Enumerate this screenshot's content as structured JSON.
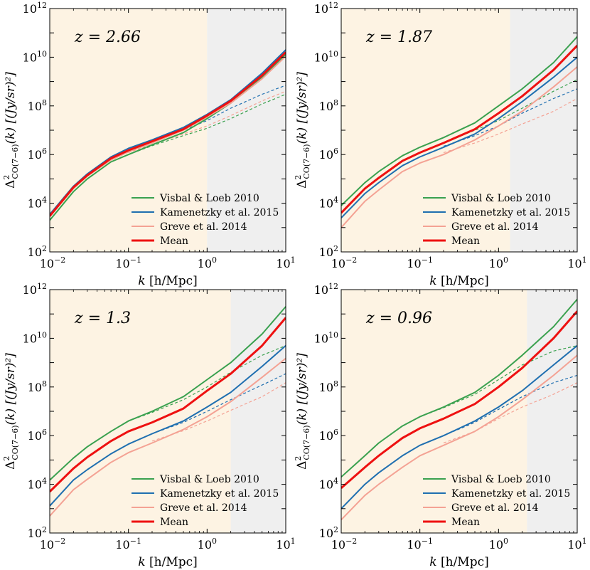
{
  "figure": {
    "title": "",
    "colors": {
      "visbal": "#3aa14f",
      "kamenetzky": "#1f6fb0",
      "greve": "#f4a294",
      "mean": "#ee1111",
      "shade_left": "#fdf3e3",
      "shade_right": "#efefef"
    }
  },
  "chart_data": [
    {
      "type": "line",
      "panel": "top-left",
      "annotation": "z = 2.66",
      "xlabel": "k [h/Mpc]",
      "ylabel": "Δ²_CO(7−6)(k) [(Jy/sr)²]",
      "xscale": "log",
      "yscale": "log",
      "xlim": [
        0.01,
        10
      ],
      "ylim": [
        100,
        1000000000000
      ],
      "xtick_labels": [
        "10^-2",
        "10^-1",
        "10^0",
        "10^1"
      ],
      "ytick_labels": [
        "10^2",
        "10^4",
        "10^6",
        "10^8",
        "10^10",
        "10^12"
      ],
      "shaded_regions": [
        {
          "name": "low-k",
          "x": [
            0.01,
            1.0
          ]
        },
        {
          "name": "high-k",
          "x": [
            1.0,
            10
          ]
        }
      ],
      "x": [
        0.01,
        0.02,
        0.03,
        0.06,
        0.1,
        0.2,
        0.5,
        1,
        2,
        5,
        10
      ],
      "series": [
        {
          "name": "Visbal & Loeb 2010",
          "style": "solid",
          "values": [
            2000,
            30000,
            100000,
            500000,
            1000000,
            2500000,
            8000000,
            30000000,
            130000000,
            1500000000,
            13000000000
          ]
        },
        {
          "name": "Kamenetzky et al.  2015",
          "style": "solid",
          "values": [
            3500,
            50000,
            160000,
            800000,
            1800000,
            4000000,
            13000000,
            45000000,
            180000000,
            2200000000,
            20000000000
          ]
        },
        {
          "name": "Greve et al.  2014",
          "style": "solid",
          "values": [
            2800,
            40000,
            130000,
            600000,
            1300000,
            3000000,
            10000000,
            35000000,
            130000000,
            1300000000,
            11000000000
          ]
        },
        {
          "name": "Mean",
          "style": "solid",
          "values": [
            3000,
            45000,
            140000,
            700000,
            1500000,
            3500000,
            11000000,
            40000000,
            160000000,
            1800000000,
            16000000000
          ]
        },
        {
          "name": "Visbal & Loeb 2010 (1-halo)",
          "style": "dashed",
          "values": [
            null,
            null,
            null,
            null,
            1000000,
            2300000,
            6000000,
            12000000,
            30000000,
            120000000,
            300000000
          ]
        },
        {
          "name": "Kamenetzky et al.  2015 (1-halo)",
          "style": "dashed",
          "values": [
            null,
            null,
            null,
            null,
            1800000,
            3800000,
            10000000,
            25000000,
            80000000,
            300000000,
            700000000
          ]
        },
        {
          "name": "Greve et al.  2014 (1-halo)",
          "style": "dashed",
          "values": [
            null,
            null,
            null,
            null,
            1200000,
            2600000,
            7000000,
            15000000,
            40000000,
            160000000,
            400000000
          ]
        }
      ],
      "legend": [
        "Visbal & Loeb 2010",
        "Kamenetzky et al.  2015",
        "Greve et al.  2014",
        "Mean"
      ]
    },
    {
      "type": "line",
      "panel": "top-right",
      "annotation": "z = 1.87",
      "xlabel": "k [h/Mpc]",
      "ylabel": "Δ²_CO(7−6)(k) [(Jy/sr)²]",
      "xscale": "log",
      "yscale": "log",
      "xlim": [
        0.01,
        10
      ],
      "ylim": [
        100,
        1000000000000
      ],
      "xtick_labels": [
        "10^-2",
        "10^-1",
        "10^0",
        "10^1"
      ],
      "ytick_labels": [
        "10^2",
        "10^4",
        "10^6",
        "10^8",
        "10^10",
        "10^12"
      ],
      "shaded_regions": [
        {
          "name": "low-k",
          "x": [
            0.01,
            1.4
          ]
        },
        {
          "name": "high-k",
          "x": [
            1.4,
            10
          ]
        }
      ],
      "x": [
        0.01,
        0.02,
        0.03,
        0.06,
        0.1,
        0.2,
        0.5,
        1,
        2,
        5,
        10
      ],
      "series": [
        {
          "name": "Visbal & Loeb 2010",
          "style": "solid",
          "values": [
            8000,
            70000,
            200000,
            900000,
            2000000,
            5000000,
            20000000,
            100000000,
            500000000,
            6000000000,
            70000000000
          ]
        },
        {
          "name": "Kamenetzky et al.  2015",
          "style": "solid",
          "values": [
            2500,
            25000,
            70000,
            350000,
            800000,
            2000000,
            7000000,
            30000000,
            150000000,
            1500000000,
            10000000000
          ]
        },
        {
          "name": "Greve et al.  2014",
          "style": "solid",
          "values": [
            1000,
            12000,
            35000,
            200000,
            450000,
            1000000,
            4000000,
            15000000,
            60000000,
            600000000,
            4000000000
          ]
        },
        {
          "name": "Mean",
          "style": "solid",
          "values": [
            4000,
            40000,
            110000,
            550000,
            1200000,
            3000000,
            11000000,
            50000000,
            250000000,
            3000000000,
            30000000000
          ]
        },
        {
          "name": "Visbal & Loeb 2010 (1-halo)",
          "style": "dashed",
          "values": [
            null,
            null,
            null,
            null,
            null,
            3000000,
            10000000,
            25000000,
            80000000,
            400000000,
            1200000000
          ]
        },
        {
          "name": "Kamenetzky et al.  2015 (1-halo)",
          "style": "dashed",
          "values": [
            null,
            null,
            null,
            null,
            null,
            2200000,
            6000000,
            15000000,
            50000000,
            200000000,
            500000000
          ]
        },
        {
          "name": "Greve et al.  2014 (1-halo)",
          "style": "dashed",
          "values": [
            null,
            null,
            null,
            null,
            null,
            1200000,
            3000000,
            7000000,
            18000000,
            60000000,
            200000000
          ]
        }
      ],
      "legend": [
        "Visbal & Loeb 2010",
        "Kamenetzky et al.  2015",
        "Greve et al.  2014",
        "Mean"
      ]
    },
    {
      "type": "line",
      "panel": "bottom-left",
      "annotation": "z = 1.3",
      "xlabel": "k [h/Mpc]",
      "ylabel": "Δ²_CO(7−6)(k) [(Jy/sr)²]",
      "xscale": "log",
      "yscale": "log",
      "xlim": [
        0.01,
        10
      ],
      "ylim": [
        100,
        1000000000000
      ],
      "xtick_labels": [
        "10^-2",
        "10^-1",
        "10^0",
        "10^1"
      ],
      "ytick_labels": [
        "10^2",
        "10^4",
        "10^6",
        "10^8",
        "10^10",
        "10^12"
      ],
      "shaded_regions": [
        {
          "name": "low-k",
          "x": [
            0.01,
            2.0
          ]
        },
        {
          "name": "high-k",
          "x": [
            2.0,
            10
          ]
        }
      ],
      "x": [
        0.01,
        0.02,
        0.03,
        0.06,
        0.1,
        0.2,
        0.5,
        1,
        2,
        5,
        10
      ],
      "series": [
        {
          "name": "Visbal & Loeb 2010",
          "style": "solid",
          "values": [
            15000,
            120000,
            350000,
            1500000,
            4000000,
            10000000,
            40000000,
            200000000,
            1000000000,
            15000000000,
            200000000000
          ]
        },
        {
          "name": "Kamenetzky et al.  2015",
          "style": "solid",
          "values": [
            1300,
            15000,
            40000,
            180000,
            450000,
            1200000,
            4000000,
            15000000,
            60000000,
            700000000,
            5000000000
          ]
        },
        {
          "name": "Greve et al.  2014",
          "style": "solid",
          "values": [
            500,
            6000,
            16000,
            80000,
            200000,
            500000,
            1800000,
            6000000,
            25000000,
            250000000,
            1500000000
          ]
        },
        {
          "name": "Mean",
          "style": "solid",
          "values": [
            5000,
            45000,
            130000,
            600000,
            1500000,
            3500000,
            13000000,
            70000000,
            350000000,
            5000000000,
            70000000000
          ]
        },
        {
          "name": "Visbal & Loeb 2010 (1-halo)",
          "style": "dashed",
          "values": [
            null,
            null,
            null,
            null,
            4000000,
            9000000,
            30000000,
            100000000,
            400000000,
            2000000000,
            5000000000
          ]
        },
        {
          "name": "Kamenetzky et al.  2015 (1-halo)",
          "style": "dashed",
          "values": [
            null,
            null,
            null,
            null,
            null,
            1200000,
            3500000,
            10000000,
            30000000,
            120000000,
            350000000
          ]
        },
        {
          "name": "Greve et al.  2014 (1-halo)",
          "style": "dashed",
          "values": [
            null,
            null,
            null,
            null,
            null,
            600000,
            1600000,
            4000000,
            11000000,
            40000000,
            150000000
          ]
        }
      ],
      "legend": [
        "Visbal & Loeb 2010",
        "Kamenetzky et al.  2015",
        "Greve et al.  2014",
        "Mean"
      ]
    },
    {
      "type": "line",
      "panel": "bottom-right",
      "annotation": "z = 0.96",
      "xlabel": "k [h/Mpc]",
      "ylabel": "Δ²_CO(7−6)(k) [(Jy/sr)²]",
      "xscale": "log",
      "yscale": "log",
      "xlim": [
        0.01,
        10
      ],
      "ylim": [
        100,
        1000000000000
      ],
      "xtick_labels": [
        "10^-2",
        "10^-1",
        "10^0",
        "10^1"
      ],
      "ytick_labels": [
        "10^2",
        "10^4",
        "10^6",
        "10^8",
        "10^10",
        "10^12"
      ],
      "shaded_regions": [
        {
          "name": "low-k",
          "x": [
            0.01,
            2.3
          ]
        },
        {
          "name": "high-k",
          "x": [
            2.3,
            10
          ]
        }
      ],
      "x": [
        0.01,
        0.02,
        0.03,
        0.06,
        0.1,
        0.2,
        0.5,
        1,
        2,
        5,
        10
      ],
      "series": [
        {
          "name": "Visbal & Loeb 2010",
          "style": "solid",
          "values": [
            20000,
            150000,
            500000,
            2500000,
            6000000,
            15000000,
            60000000,
            300000000,
            2000000000,
            30000000000,
            400000000000
          ]
        },
        {
          "name": "Kamenetzky et al.  2015",
          "style": "solid",
          "values": [
            1000,
            10000,
            30000,
            150000,
            400000,
            1000000,
            4000000,
            15000000,
            70000000,
            800000000,
            5000000000
          ]
        },
        {
          "name": "Greve et al.  2014",
          "style": "solid",
          "values": [
            350,
            3500,
            10000,
            50000,
            150000,
            400000,
            1500000,
            6000000,
            30000000,
            300000000,
            2000000000
          ]
        },
        {
          "name": "Mean",
          "style": "solid",
          "values": [
            7000,
            50000,
            150000,
            800000,
            2000000,
            5000000,
            20000000,
            100000000,
            600000000,
            10000000000,
            130000000000
          ]
        },
        {
          "name": "Visbal & Loeb 2010 (1-halo)",
          "style": "dashed",
          "values": [
            null,
            null,
            null,
            null,
            6000000,
            14000000,
            50000000,
            200000000,
            800000000,
            3000000000,
            5000000000
          ]
        },
        {
          "name": "Kamenetzky et al.  2015 (1-halo)",
          "style": "dashed",
          "values": [
            null,
            null,
            null,
            null,
            null,
            1000000,
            3500000,
            12000000,
            40000000,
            150000000,
            300000000
          ]
        },
        {
          "name": "Greve et al.  2014 (1-halo)",
          "style": "dashed",
          "values": [
            null,
            null,
            null,
            null,
            null,
            500000,
            1500000,
            5000000,
            15000000,
            50000000,
            150000000
          ]
        }
      ],
      "legend": [
        "Visbal & Loeb 2010",
        "Kamenetzky et al.  2015",
        "Greve et al.  2014",
        "Mean"
      ]
    }
  ]
}
